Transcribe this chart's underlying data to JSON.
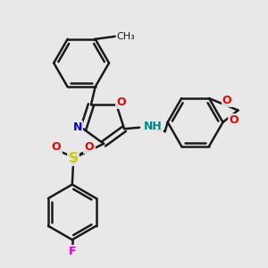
{
  "bg_color": "#e8e8e8",
  "bond_color": "#1a1a1a",
  "N_color": "#0000ee",
  "O_color": "#ee0000",
  "S_color": "#cccc00",
  "F_color": "#dd00dd",
  "NH_color": "#008888",
  "line_width": 1.8,
  "figsize": [
    3.0,
    3.0
  ],
  "dpi": 100,
  "xlim": [
    0,
    10
  ],
  "ylim": [
    0,
    10
  ]
}
